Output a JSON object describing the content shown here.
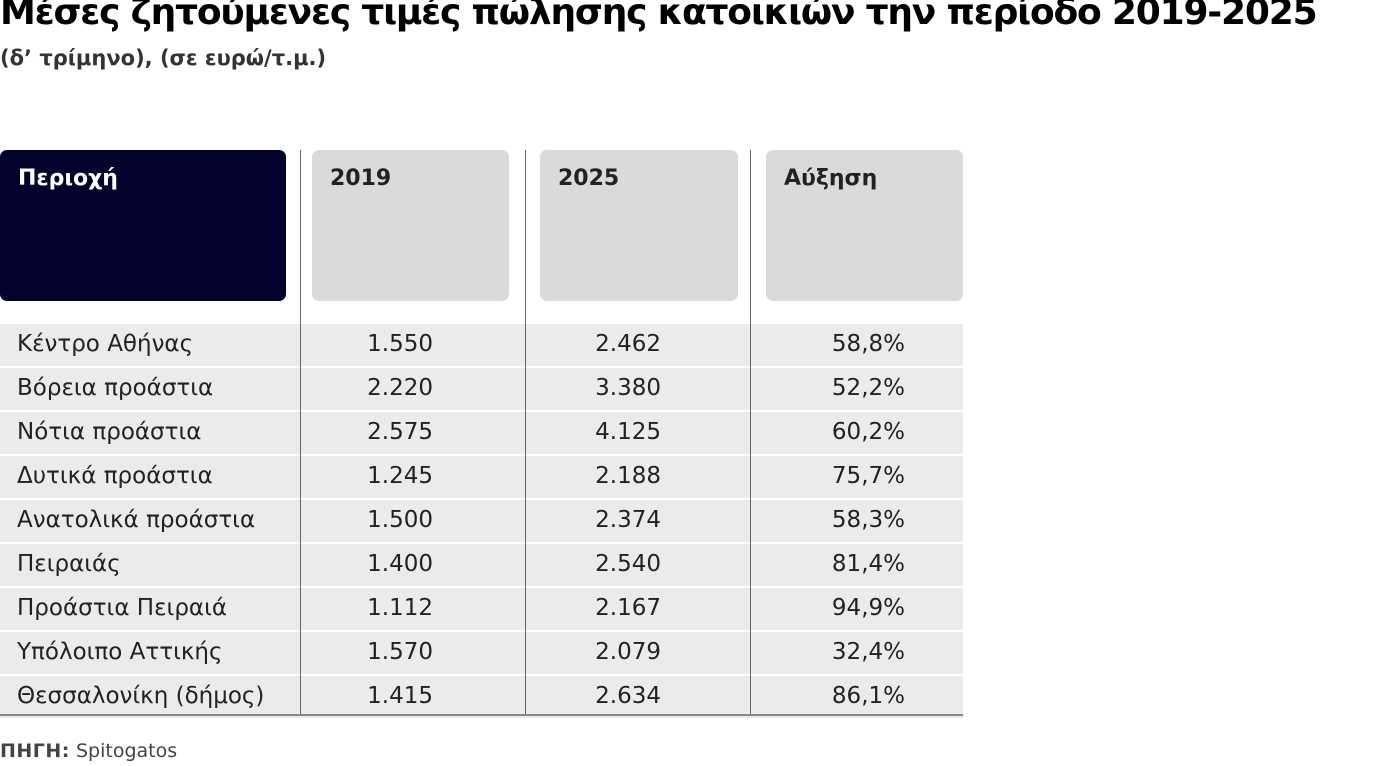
{
  "title": "Μέσες ζητούμενες τιμές πώλησης κατοικιών την περίοδο 2019-2025",
  "subtitle": "(δ’ τρίμηνο), (σε ευρώ/τ.μ.)",
  "source_label": "ΠΗΓΗ:",
  "source_value": "Spitogatos",
  "colors": {
    "header_dark": "#03032e",
    "header_light": "#dadadb",
    "row_bg": "#ebebec"
  },
  "chart_data": {
    "type": "table",
    "title": "Μέσες ζητούμενες τιμές πώλησης κατοικιών την περίοδο 2019-2025",
    "subtitle": "(δ’ τρίμηνο), (σε ευρώ/τ.μ.)",
    "columns": [
      "Περιοχή",
      "2019",
      "2025",
      "Αύξηση"
    ],
    "rows": [
      {
        "region": "Κέντρο Αθήνας",
        "y2019": "1.550",
        "y2025": "2.462",
        "growth": "58,8%"
      },
      {
        "region": "Βόρεια προάστια",
        "y2019": "2.220",
        "y2025": "3.380",
        "growth": "52,2%"
      },
      {
        "region": "Νότια προάστια",
        "y2019": "2.575",
        "y2025": "4.125",
        "growth": "60,2%"
      },
      {
        "region": "Δυτικά προάστια",
        "y2019": "1.245",
        "y2025": "2.188",
        "growth": "75,7%"
      },
      {
        "region": "Ανατολικά προάστια",
        "y2019": "1.500",
        "y2025": "2.374",
        "growth": "58,3%"
      },
      {
        "region": "Πειραιάς",
        "y2019": "1.400",
        "y2025": "2.540",
        "growth": "81,4%"
      },
      {
        "region": "Προάστια Πειραιά",
        "y2019": "1.112",
        "y2025": "2.167",
        "growth": "94,9%"
      },
      {
        "region": "Υπόλοιπο Αττικής",
        "y2019": "1.570",
        "y2025": "2.079",
        "growth": "32,4%"
      },
      {
        "region": "Θεσσαλονίκη (δήμος)",
        "y2019": "1.415",
        "y2025": "2.634",
        "growth": "86,1%"
      }
    ]
  }
}
